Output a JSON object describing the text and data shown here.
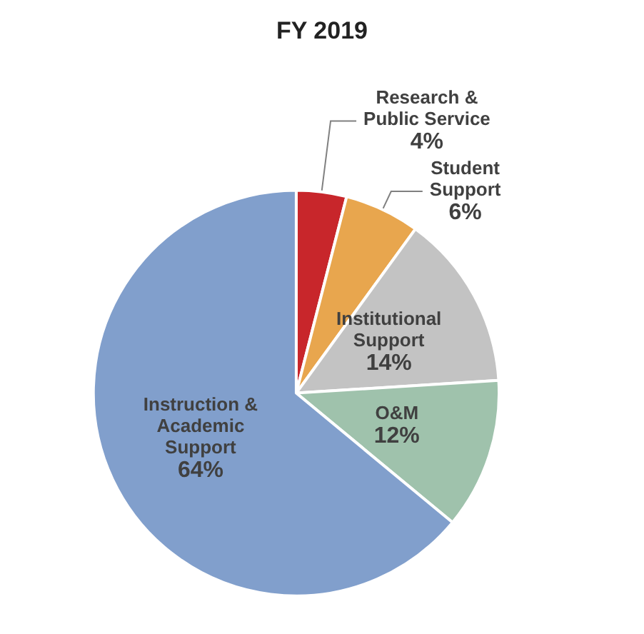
{
  "chart_data": {
    "type": "pie",
    "title": "FY 2019",
    "categories": [
      "Research & Public Service",
      "Student Support",
      "Institutional Support",
      "O&M",
      "Instruction & Academic Support"
    ],
    "values": [
      4,
      6,
      14,
      12,
      64
    ],
    "colors": [
      "#c8262b",
      "#e8a64e",
      "#c3c3c3",
      "#9fc2ac",
      "#819fcc"
    ],
    "value_labels": [
      "4%",
      "6%",
      "14%",
      "12%",
      "64%"
    ],
    "legend": false
  }
}
